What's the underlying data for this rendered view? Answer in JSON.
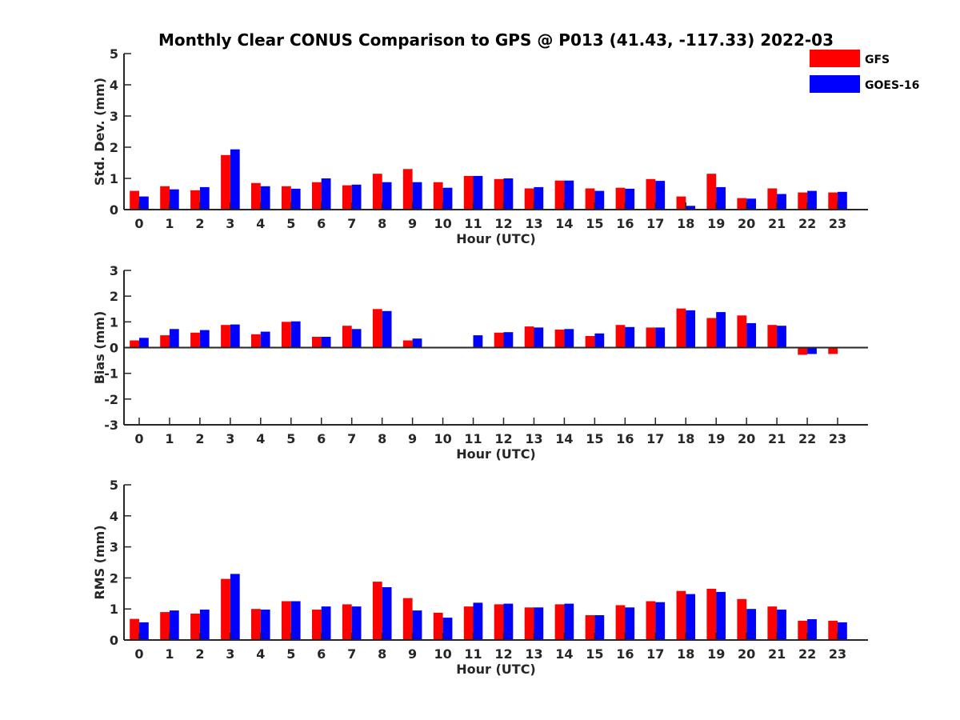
{
  "title": "Monthly Clear CONUS Comparison to GPS @ P013 (41.43, -117.33) 2022-03",
  "legend": [
    {
      "name": "GFS",
      "color": "#ff0000"
    },
    {
      "name": "GOES-16",
      "color": "#0000ff"
    }
  ],
  "chart_data": [
    {
      "type": "bar",
      "xlabel": "Hour (UTC)",
      "ylabel": "Std. Dev. (mm)",
      "ylim": [
        0,
        5
      ],
      "yticks": [
        "0",
        "1",
        "2",
        "3",
        "4",
        "5"
      ],
      "categories": [
        "0",
        "1",
        "2",
        "3",
        "4",
        "5",
        "6",
        "7",
        "8",
        "9",
        "10",
        "11",
        "12",
        "13",
        "14",
        "15",
        "16",
        "17",
        "18",
        "19",
        "20",
        "21",
        "22",
        "23"
      ],
      "series": [
        {
          "name": "GFS",
          "values": [
            0.6,
            0.75,
            0.62,
            1.75,
            0.85,
            0.75,
            0.88,
            0.78,
            1.15,
            1.3,
            0.88,
            1.08,
            0.98,
            0.68,
            0.93,
            0.68,
            0.7,
            0.98,
            0.42,
            1.15,
            0.37,
            0.68,
            0.55,
            0.55
          ]
        },
        {
          "name": "GOES-16",
          "values": [
            0.42,
            0.65,
            0.72,
            1.93,
            0.75,
            0.67,
            1.0,
            0.8,
            0.88,
            0.88,
            0.7,
            1.08,
            1.0,
            0.72,
            0.93,
            0.6,
            0.67,
            0.92,
            0.12,
            0.72,
            0.35,
            0.5,
            0.6,
            0.57
          ]
        }
      ]
    },
    {
      "type": "bar",
      "xlabel": "Hour (UTC)",
      "ylabel": "Bias (mm)",
      "ylim": [
        -3,
        3
      ],
      "yticks": [
        "-3",
        "-2",
        "-1",
        "0",
        "1",
        "2",
        "3"
      ],
      "categories": [
        "0",
        "1",
        "2",
        "3",
        "4",
        "5",
        "6",
        "7",
        "8",
        "9",
        "10",
        "11",
        "12",
        "13",
        "14",
        "15",
        "16",
        "17",
        "18",
        "19",
        "20",
        "21",
        "22",
        "23"
      ],
      "series": [
        {
          "name": "GFS",
          "values": [
            0.28,
            0.48,
            0.58,
            0.88,
            0.52,
            1.0,
            0.42,
            0.85,
            1.5,
            0.28,
            -0.02,
            0.0,
            0.58,
            0.82,
            0.7,
            0.45,
            0.88,
            0.78,
            1.52,
            1.15,
            1.25,
            0.88,
            -0.28,
            -0.25
          ]
        },
        {
          "name": "GOES-16",
          "values": [
            0.38,
            0.72,
            0.68,
            0.9,
            0.62,
            1.02,
            0.42,
            0.72,
            1.42,
            0.35,
            0.02,
            0.48,
            0.6,
            0.78,
            0.72,
            0.55,
            0.8,
            0.78,
            1.45,
            1.38,
            0.95,
            0.85,
            -0.25,
            0.0
          ]
        }
      ]
    },
    {
      "type": "bar",
      "xlabel": "Hour (UTC)",
      "ylabel": "RMS (mm)",
      "ylim": [
        0,
        5
      ],
      "yticks": [
        "0",
        "1",
        "2",
        "3",
        "4",
        "5"
      ],
      "categories": [
        "0",
        "1",
        "2",
        "3",
        "4",
        "5",
        "6",
        "7",
        "8",
        "9",
        "10",
        "11",
        "12",
        "13",
        "14",
        "15",
        "16",
        "17",
        "18",
        "19",
        "20",
        "21",
        "22",
        "23"
      ],
      "series": [
        {
          "name": "GFS",
          "values": [
            0.68,
            0.9,
            0.85,
            1.97,
            1.0,
            1.25,
            0.98,
            1.15,
            1.88,
            1.35,
            0.88,
            1.08,
            1.15,
            1.05,
            1.15,
            0.8,
            1.12,
            1.25,
            1.58,
            1.65,
            1.32,
            1.08,
            0.62,
            0.62
          ]
        },
        {
          "name": "GOES-16",
          "values": [
            0.57,
            0.95,
            0.98,
            2.13,
            0.98,
            1.25,
            1.08,
            1.08,
            1.7,
            0.95,
            0.72,
            1.2,
            1.17,
            1.05,
            1.17,
            0.8,
            1.05,
            1.22,
            1.48,
            1.55,
            1.0,
            0.98,
            0.67,
            0.57
          ]
        }
      ]
    }
  ]
}
